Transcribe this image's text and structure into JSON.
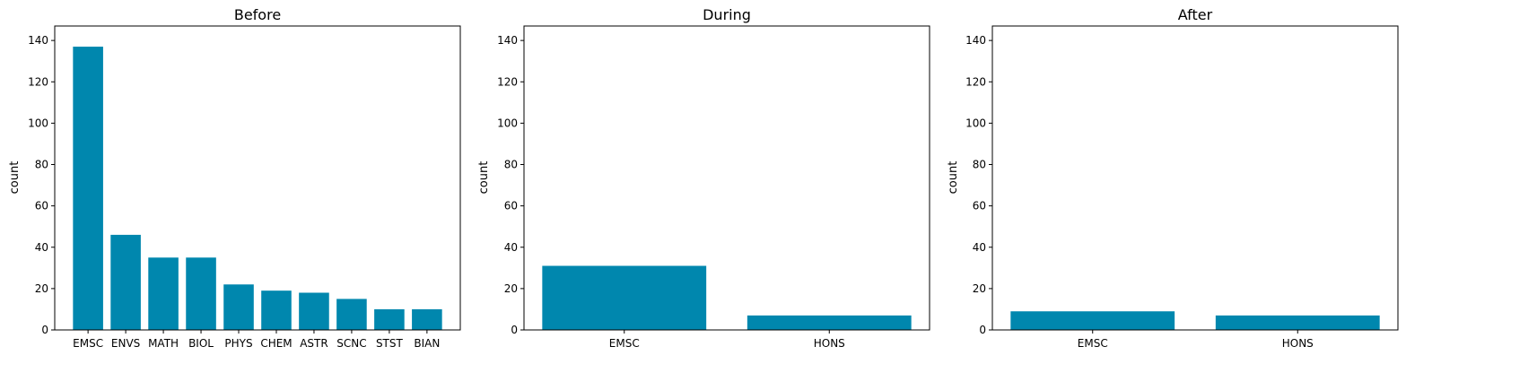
{
  "chart_data": [
    {
      "type": "bar",
      "title": "Before",
      "xlabel": "",
      "ylabel": "count",
      "ylim": [
        0,
        147
      ],
      "yticks": [
        0,
        20,
        40,
        60,
        80,
        100,
        120,
        140
      ],
      "categories": [
        "EMSC",
        "ENVS",
        "MATH",
        "BIOL",
        "PHYS",
        "CHEM",
        "ASTR",
        "SCNC",
        "STST",
        "BIAN"
      ],
      "values": [
        137,
        46,
        35,
        35,
        22,
        19,
        18,
        15,
        10,
        10
      ],
      "color": "#0087ae",
      "grid": false
    },
    {
      "type": "bar",
      "title": "During",
      "xlabel": "",
      "ylabel": "count",
      "ylim": [
        0,
        147
      ],
      "yticks": [
        0,
        20,
        40,
        60,
        80,
        100,
        120,
        140
      ],
      "categories": [
        "EMSC",
        "HONS"
      ],
      "values": [
        31,
        7
      ],
      "color": "#0087ae",
      "grid": false
    },
    {
      "type": "bar",
      "title": "After",
      "xlabel": "",
      "ylabel": "count",
      "ylim": [
        0,
        147
      ],
      "yticks": [
        0,
        20,
        40,
        60,
        80,
        100,
        120,
        140
      ],
      "categories": [
        "EMSC",
        "HONS"
      ],
      "values": [
        9,
        7
      ],
      "color": "#0087ae",
      "grid": false
    }
  ]
}
